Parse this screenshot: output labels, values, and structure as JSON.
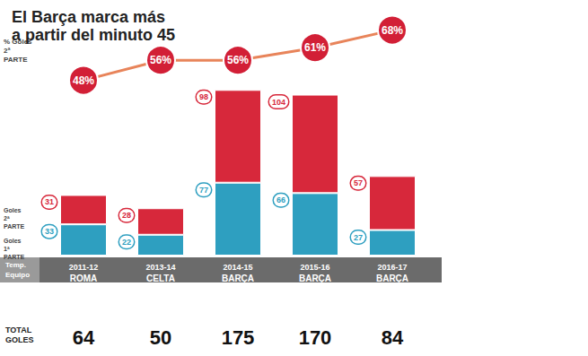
{
  "chart_data": {
    "type": "bar",
    "title": "El Barça marca más\na partir del minuto 45",
    "stacked": true,
    "data_labels": true,
    "tick_labels": "x",
    "categories": [
      "2011-12",
      "2013-14",
      "2014-15",
      "2015-16",
      "2016-17"
    ],
    "category_label": "Temp.",
    "teams_label": "Equipo",
    "teams": [
      "ROMA",
      "CELTA",
      "BARÇA",
      "BARÇA",
      "BARÇA"
    ],
    "totals_label": "TOTAL GOLES",
    "totals": [
      64,
      50,
      175,
      170,
      84
    ],
    "series": [
      {
        "name": "Goles 1ª PARTE",
        "color": "#2e9fc0",
        "values": [
          33,
          22,
          77,
          66,
          27
        ]
      },
      {
        "name": "Goles 2ª PARTE",
        "color": "#d7283b",
        "values": [
          31,
          28,
          98,
          104,
          57
        ]
      },
      {
        "name": "% Goles 2ª PARTE",
        "type": "line",
        "axis": "y2",
        "color": "#e8845a",
        "marker": "circle",
        "values": [
          48,
          56,
          56,
          61,
          68
        ],
        "value_labels": [
          "48%",
          "56%",
          "56%",
          "61%",
          "68%"
        ]
      }
    ],
    "ylim": [
      0,
      180
    ],
    "y2lim": [
      45,
      70
    ]
  }
}
